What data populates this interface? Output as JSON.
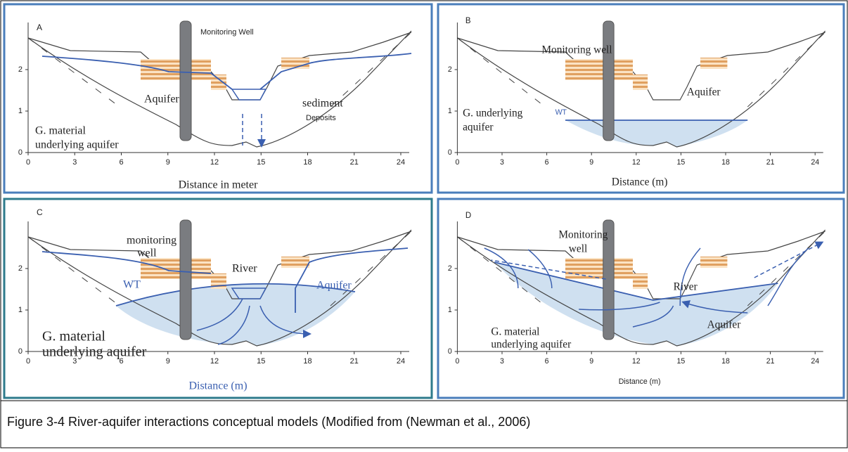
{
  "figure": {
    "panels": [
      {
        "letter": "A",
        "labels": [
          "Monitoring Well",
          "Aquifer",
          "sediment",
          "Deposits",
          "G. material",
          "underlying aquifer"
        ],
        "xlabel": "Distance in meter",
        "xticks": [
          0,
          3,
          6,
          9,
          12,
          15,
          18,
          21,
          24
        ],
        "yticks": [
          0,
          1,
          2
        ]
      },
      {
        "letter": "B",
        "labels": [
          "Monitoring well",
          "Aquifer",
          "WT",
          "G. underlying",
          "aquifer"
        ],
        "xlabel": "Distance (m)",
        "xticks": [
          0,
          3,
          6,
          9,
          12,
          15,
          18,
          21,
          24
        ],
        "yticks": [
          0,
          1,
          2
        ]
      },
      {
        "letter": "C",
        "labels": [
          "monitoring",
          "well",
          "River",
          "WT",
          "Aquifer",
          "G. material",
          "underlying aquifer"
        ],
        "xlabel": "Distance (m)",
        "xticks": [
          0,
          3,
          6,
          9,
          12,
          15,
          18,
          21,
          24
        ],
        "yticks": [
          0,
          1,
          2
        ]
      },
      {
        "letter": "D",
        "labels": [
          "Monitoring",
          "well",
          "River",
          "Aquifer",
          "G. material",
          "underlying aquifer"
        ],
        "xlabel": "Distance (m)",
        "xticks": [
          0,
          3,
          6,
          9,
          12,
          15,
          18,
          21,
          24
        ],
        "yticks": [
          0,
          1,
          2
        ]
      }
    ],
    "caption": "Figure 3-4 River-aquifer interactions conceptual models (Modified from (Newman et al., 2006)"
  }
}
